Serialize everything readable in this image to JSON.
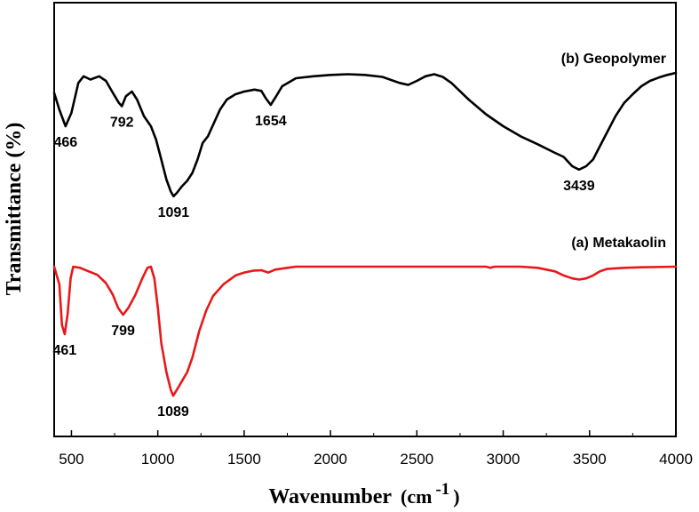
{
  "chart_data": {
    "type": "line",
    "title": "",
    "xlabel": "Wavenumber",
    "xlabel_unit_base": "(cm",
    "xlabel_unit_exp": "-1",
    "xlabel_unit_close": ")",
    "ylabel": "Transmittance (%)",
    "xlim": [
      400,
      4000
    ],
    "x_ticks": [
      500,
      1000,
      1500,
      2000,
      2500,
      3000,
      3500,
      4000
    ],
    "x_tick_labels": [
      "500",
      "1000",
      "1500",
      "2000",
      "2500",
      "3000",
      "3500",
      "4000"
    ],
    "y_ticks_shown": false,
    "series": [
      {
        "name": "(b) Geopolymer",
        "color": "#000000",
        "points": [
          [
            400,
            0.3
          ],
          [
            430,
            0.55
          ],
          [
            466,
            0.8
          ],
          [
            500,
            0.6
          ],
          [
            540,
            0.15
          ],
          [
            570,
            0.05
          ],
          [
            610,
            0.1
          ],
          [
            660,
            0.05
          ],
          [
            700,
            0.12
          ],
          [
            740,
            0.3
          ],
          [
            775,
            0.45
          ],
          [
            792,
            0.5
          ],
          [
            815,
            0.35
          ],
          [
            850,
            0.28
          ],
          [
            880,
            0.4
          ],
          [
            920,
            0.65
          ],
          [
            960,
            0.8
          ],
          [
            990,
            1.0
          ],
          [
            1020,
            1.3
          ],
          [
            1050,
            1.6
          ],
          [
            1075,
            1.78
          ],
          [
            1091,
            1.85
          ],
          [
            1110,
            1.8
          ],
          [
            1140,
            1.7
          ],
          [
            1170,
            1.62
          ],
          [
            1200,
            1.5
          ],
          [
            1230,
            1.3
          ],
          [
            1260,
            1.05
          ],
          [
            1290,
            0.95
          ],
          [
            1320,
            0.78
          ],
          [
            1360,
            0.55
          ],
          [
            1400,
            0.4
          ],
          [
            1450,
            0.32
          ],
          [
            1500,
            0.28
          ],
          [
            1560,
            0.25
          ],
          [
            1600,
            0.27
          ],
          [
            1625,
            0.38
          ],
          [
            1654,
            0.48
          ],
          [
            1685,
            0.35
          ],
          [
            1720,
            0.2
          ],
          [
            1800,
            0.08
          ],
          [
            1900,
            0.05
          ],
          [
            2000,
            0.03
          ],
          [
            2100,
            0.02
          ],
          [
            2200,
            0.03
          ],
          [
            2300,
            0.06
          ],
          [
            2400,
            0.15
          ],
          [
            2450,
            0.18
          ],
          [
            2500,
            0.12
          ],
          [
            2550,
            0.05
          ],
          [
            2600,
            0.02
          ],
          [
            2650,
            0.06
          ],
          [
            2700,
            0.15
          ],
          [
            2800,
            0.4
          ],
          [
            2900,
            0.62
          ],
          [
            3000,
            0.8
          ],
          [
            3100,
            0.95
          ],
          [
            3200,
            1.07
          ],
          [
            3300,
            1.2
          ],
          [
            3350,
            1.26
          ],
          [
            3400,
            1.4
          ],
          [
            3439,
            1.45
          ],
          [
            3480,
            1.4
          ],
          [
            3520,
            1.3
          ],
          [
            3560,
            1.1
          ],
          [
            3600,
            0.9
          ],
          [
            3650,
            0.65
          ],
          [
            3700,
            0.45
          ],
          [
            3750,
            0.32
          ],
          [
            3800,
            0.2
          ],
          [
            3850,
            0.12
          ],
          [
            3900,
            0.07
          ],
          [
            3950,
            0.03
          ],
          [
            4000,
            0.0
          ]
        ]
      },
      {
        "name": "(a) Metakaolin",
        "color": "#e8181a",
        "points": [
          [
            400,
            0.0
          ],
          [
            430,
            0.3
          ],
          [
            445,
            1.0
          ],
          [
            461,
            1.15
          ],
          [
            478,
            0.8
          ],
          [
            495,
            0.2
          ],
          [
            510,
            0.0
          ],
          [
            550,
            0.02
          ],
          [
            600,
            0.08
          ],
          [
            650,
            0.14
          ],
          [
            700,
            0.28
          ],
          [
            740,
            0.48
          ],
          [
            770,
            0.7
          ],
          [
            799,
            0.82
          ],
          [
            830,
            0.7
          ],
          [
            870,
            0.48
          ],
          [
            910,
            0.2
          ],
          [
            940,
            0.02
          ],
          [
            960,
            0.0
          ],
          [
            980,
            0.2
          ],
          [
            1000,
            0.7
          ],
          [
            1020,
            1.3
          ],
          [
            1050,
            1.8
          ],
          [
            1075,
            2.1
          ],
          [
            1089,
            2.2
          ],
          [
            1110,
            2.1
          ],
          [
            1140,
            1.95
          ],
          [
            1170,
            1.8
          ],
          [
            1200,
            1.55
          ],
          [
            1240,
            1.1
          ],
          [
            1280,
            0.75
          ],
          [
            1320,
            0.5
          ],
          [
            1380,
            0.3
          ],
          [
            1450,
            0.15
          ],
          [
            1500,
            0.1
          ],
          [
            1550,
            0.07
          ],
          [
            1600,
            0.06
          ],
          [
            1640,
            0.1
          ],
          [
            1680,
            0.05
          ],
          [
            1750,
            0.02
          ],
          [
            1800,
            0.0
          ],
          [
            2000,
            0.0
          ],
          [
            2500,
            0.0
          ],
          [
            2900,
            0.0
          ],
          [
            2925,
            0.02
          ],
          [
            2950,
            0.0
          ],
          [
            3000,
            0.0
          ],
          [
            3100,
            0.0
          ],
          [
            3200,
            0.02
          ],
          [
            3300,
            0.08
          ],
          [
            3350,
            0.15
          ],
          [
            3400,
            0.2
          ],
          [
            3440,
            0.22
          ],
          [
            3480,
            0.2
          ],
          [
            3520,
            0.15
          ],
          [
            3560,
            0.08
          ],
          [
            3600,
            0.04
          ],
          [
            3700,
            0.02
          ],
          [
            3800,
            0.01
          ],
          [
            4000,
            0.0
          ]
        ]
      }
    ],
    "peak_labels": [
      {
        "series": "(b) Geopolymer",
        "text": "466",
        "x": 466
      },
      {
        "series": "(b) Geopolymer",
        "text": "792",
        "x": 792
      },
      {
        "series": "(b) Geopolymer",
        "text": "1091",
        "x": 1091
      },
      {
        "series": "(b) Geopolymer",
        "text": "1654",
        "x": 1654
      },
      {
        "series": "(b) Geopolymer",
        "text": "3439",
        "x": 3439
      },
      {
        "series": "(a) Metakaolin",
        "text": "461",
        "x": 461
      },
      {
        "series": "(a) Metakaolin",
        "text": "799",
        "x": 799
      },
      {
        "series": "(a) Metakaolin",
        "text": "1089",
        "x": 1089
      }
    ]
  }
}
